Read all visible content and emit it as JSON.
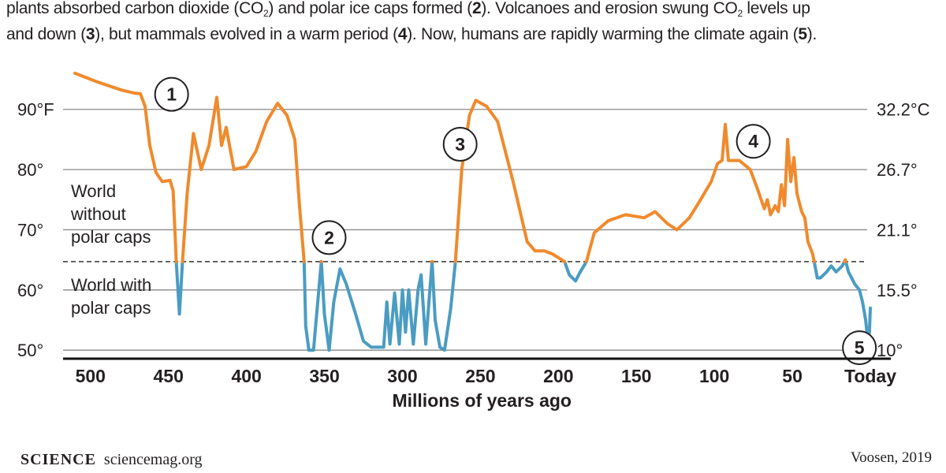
{
  "caption": {
    "line1": [
      {
        "t": "plants absorbed carbon dioxide (CO"
      },
      {
        "t": "2",
        "sub": true
      },
      {
        "t": ") and polar ice caps formed ("
      },
      {
        "t": "2",
        "b": true
      },
      {
        "t": "). Volcanoes and erosion swung CO"
      },
      {
        "t": "2",
        "sub": true
      },
      {
        "t": " levels up"
      }
    ],
    "line2": [
      {
        "t": "and down ("
      },
      {
        "t": "3",
        "b": true
      },
      {
        "t": "), but mammals evolved in a warm period ("
      },
      {
        "t": "4",
        "b": true
      },
      {
        "t": "). Now, humans are rapidly warming the climate again ("
      },
      {
        "t": "5",
        "b": true
      },
      {
        "t": ")."
      }
    ]
  },
  "chart_data": {
    "type": "line",
    "xlabel": "Millions of years ago",
    "x_ticks": [
      {
        "x": 500,
        "label": "500"
      },
      {
        "x": 450,
        "label": "450"
      },
      {
        "x": 400,
        "label": "400"
      },
      {
        "x": 350,
        "label": "350"
      },
      {
        "x": 300,
        "label": "300"
      },
      {
        "x": 250,
        "label": "250"
      },
      {
        "x": 200,
        "label": "200"
      },
      {
        "x": 150,
        "label": "150"
      },
      {
        "x": 100,
        "label": "100"
      },
      {
        "x": 50,
        "label": "50"
      },
      {
        "x": 0,
        "label": "Today"
      }
    ],
    "xlim": [
      510,
      0
    ],
    "ylim": [
      44,
      99
    ],
    "y_ticks_left": [
      {
        "y": 90,
        "label": "90°F"
      },
      {
        "y": 80,
        "label": "80°"
      },
      {
        "y": 70,
        "label": "70°"
      },
      {
        "y": 60,
        "label": "60°"
      },
      {
        "y": 50,
        "label": "50°"
      }
    ],
    "y_ticks_right": [
      {
        "y": 90,
        "label": "32.2°C"
      },
      {
        "y": 80,
        "label": "26.7°"
      },
      {
        "y": 70,
        "label": "21.1°"
      },
      {
        "y": 60,
        "label": "15.5°"
      },
      {
        "y": 50,
        "label": "10°"
      }
    ],
    "grid": true,
    "threshold": 64.7,
    "colors": {
      "warm": "#f08a2c",
      "cold": "#4a9cc2",
      "grid": "#8a8a8a",
      "text": "#231f20"
    },
    "region_labels": [
      {
        "text": [
          "World",
          "without",
          "polar caps"
        ],
        "position": "above-threshold-left"
      },
      {
        "text": [
          "World with",
          "polar caps"
        ],
        "position": "below-threshold-left"
      }
    ],
    "annotations": [
      {
        "label": "1",
        "x": 448,
        "y": 92.5
      },
      {
        "label": "2",
        "x": 347,
        "y": 68.7
      },
      {
        "label": "3",
        "x": 263,
        "y": 84.2
      },
      {
        "label": "4",
        "x": 75,
        "y": 84.7
      },
      {
        "label": "5",
        "x": 7,
        "y": 50.4
      }
    ],
    "series": [
      {
        "points": [
          [
            510,
            96.0
          ],
          [
            495,
            94.5
          ],
          [
            480,
            93.2
          ],
          [
            472,
            92.7
          ],
          [
            468,
            92.6
          ],
          [
            465,
            90.5
          ],
          [
            462,
            84.0
          ],
          [
            458,
            79.5
          ],
          [
            454,
            78.0
          ],
          [
            449,
            78.2
          ],
          [
            447,
            76.5
          ],
          [
            445,
            64.7
          ],
          [
            443,
            56.0
          ],
          [
            441,
            64.7
          ],
          [
            438,
            76.0
          ],
          [
            434,
            86.0
          ],
          [
            429,
            80.0
          ],
          [
            424,
            84.0
          ],
          [
            419,
            92.0
          ],
          [
            416,
            84.0
          ],
          [
            413,
            87.0
          ],
          [
            408,
            80.0
          ],
          [
            400,
            80.5
          ],
          [
            394,
            83.0
          ],
          [
            387,
            88.0
          ],
          [
            380,
            91.0
          ],
          [
            374,
            89.0
          ],
          [
            369,
            85.0
          ],
          [
            366,
            74.0
          ],
          [
            363,
            64.7
          ],
          [
            362,
            54.0
          ],
          [
            360,
            50.0
          ],
          [
            357,
            50.0
          ],
          [
            355,
            56.0
          ],
          [
            352,
            64.7
          ],
          [
            350,
            56.0
          ],
          [
            347,
            50.0
          ],
          [
            344,
            58.0
          ],
          [
            340,
            63.5
          ],
          [
            336,
            61.0
          ],
          [
            330,
            56.0
          ],
          [
            325,
            51.5
          ],
          [
            320,
            50.5
          ],
          [
            312,
            50.5
          ],
          [
            310,
            58.0
          ],
          [
            308,
            51.0
          ],
          [
            305,
            59.5
          ],
          [
            302,
            51.0
          ],
          [
            300,
            60.0
          ],
          [
            298,
            53.0
          ],
          [
            296,
            60.0
          ],
          [
            293,
            51.0
          ],
          [
            290,
            60.0
          ],
          [
            288,
            62.5
          ],
          [
            285,
            51.0
          ],
          [
            283,
            58.0
          ],
          [
            281,
            64.7
          ],
          [
            279,
            55.0
          ],
          [
            276,
            50.5
          ],
          [
            273,
            50.0
          ],
          [
            269,
            57.0
          ],
          [
            266,
            64.7
          ],
          [
            262,
            80.0
          ],
          [
            257,
            89.0
          ],
          [
            253,
            91.5
          ],
          [
            246,
            90.5
          ],
          [
            239,
            88.0
          ],
          [
            229,
            78.0
          ],
          [
            220,
            68.0
          ],
          [
            215,
            66.5
          ],
          [
            209,
            66.5
          ],
          [
            204,
            66.0
          ],
          [
            199,
            65.2
          ],
          [
            196,
            64.7
          ],
          [
            193,
            62.5
          ],
          [
            189,
            61.5
          ],
          [
            186,
            63.0
          ],
          [
            182,
            64.7
          ],
          [
            177,
            69.5
          ],
          [
            168,
            71.5
          ],
          [
            157,
            72.5
          ],
          [
            145,
            72.0
          ],
          [
            138,
            73.0
          ],
          [
            130,
            71.0
          ],
          [
            124,
            70.0
          ],
          [
            116,
            72.0
          ],
          [
            110,
            74.5
          ],
          [
            102,
            78.0
          ],
          [
            98,
            81.0
          ],
          [
            95,
            81.5
          ],
          [
            93,
            87.5
          ],
          [
            91,
            81.5
          ],
          [
            84,
            81.5
          ],
          [
            77,
            80.0
          ],
          [
            72,
            76.5
          ],
          [
            68,
            73.5
          ],
          [
            66,
            75.0
          ],
          [
            64,
            72.5
          ],
          [
            61,
            74.0
          ],
          [
            59,
            73.0
          ],
          [
            57,
            77.5
          ],
          [
            55,
            74.0
          ],
          [
            53,
            85.0
          ],
          [
            51,
            78.0
          ],
          [
            49,
            82.0
          ],
          [
            47,
            76.0
          ],
          [
            44,
            73.0
          ],
          [
            42,
            72.0
          ],
          [
            40,
            68.0
          ],
          [
            37,
            66.0
          ],
          [
            36,
            64.7
          ],
          [
            34,
            62.0
          ],
          [
            32,
            62.0
          ],
          [
            28,
            63.0
          ],
          [
            25,
            64.0
          ],
          [
            22,
            63.0
          ],
          [
            18,
            64.0
          ],
          [
            16,
            65.0
          ],
          [
            14,
            63.0
          ],
          [
            10,
            61.0
          ],
          [
            7,
            60.0
          ],
          [
            5,
            58.0
          ],
          [
            3,
            55.0
          ],
          [
            1,
            50.0
          ],
          [
            0,
            57.0
          ]
        ]
      }
    ]
  },
  "footer": {
    "brand": "SCIENCE",
    "url": "sciencemag.org",
    "credit": "Voosen, 2019"
  }
}
